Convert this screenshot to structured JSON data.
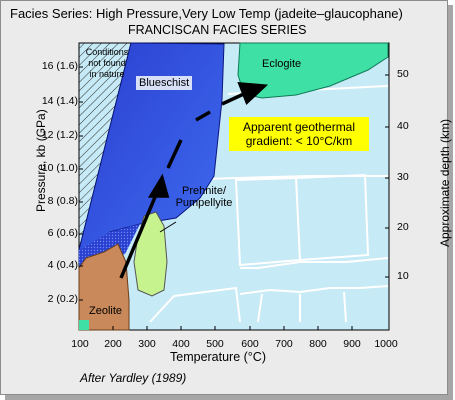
{
  "header": {
    "title": "Facies Series: High  Pressure,Very Low Temp (jadeite–glaucophane)",
    "subtitle": "FRANCISCAN  FACIES SERIES"
  },
  "axes": {
    "y_left_label": "Pressure, kb (GPa)",
    "y_right_label": "Approximate depth (km)",
    "x_label": "Temperature (°C)",
    "y_left_ticks": [
      "16 (1.6)",
      "14 (1.4)",
      "12 (1.2)",
      "10 (1.0)",
      "8 (0.8)",
      "6 (0.6)",
      "4 (0.4)",
      "2 (0.2)"
    ],
    "y_right_ticks": [
      "50",
      "40",
      "30",
      "20",
      "10"
    ],
    "x_ticks": [
      "100",
      "200",
      "300",
      "400",
      "500",
      "600",
      "700",
      "800",
      "900",
      "1000"
    ]
  },
  "labels": {
    "not_found_1": "Conditions",
    "not_found_2": "not found",
    "not_found_3": "in nature",
    "blueschist": "Blueschist",
    "eclogite": "Eclogite",
    "prehnite_1": "Prehnite/",
    "prehnite_2": "Pumpellyite",
    "zeolite": "Zeolite",
    "geotherm_1": "Apparent geothermal",
    "geotherm_2": "gradient:  < 10°C/km"
  },
  "source": "After Yardley (1989)",
  "colors": {
    "background": "#c6eaf6",
    "blueschist": "#2438c4",
    "eclogite": "#3fe0a6",
    "prehnite": "#c6f38e",
    "zeolite": "#c9895a",
    "geotherm_box": "#ffff00",
    "arrow": "#000000"
  }
}
